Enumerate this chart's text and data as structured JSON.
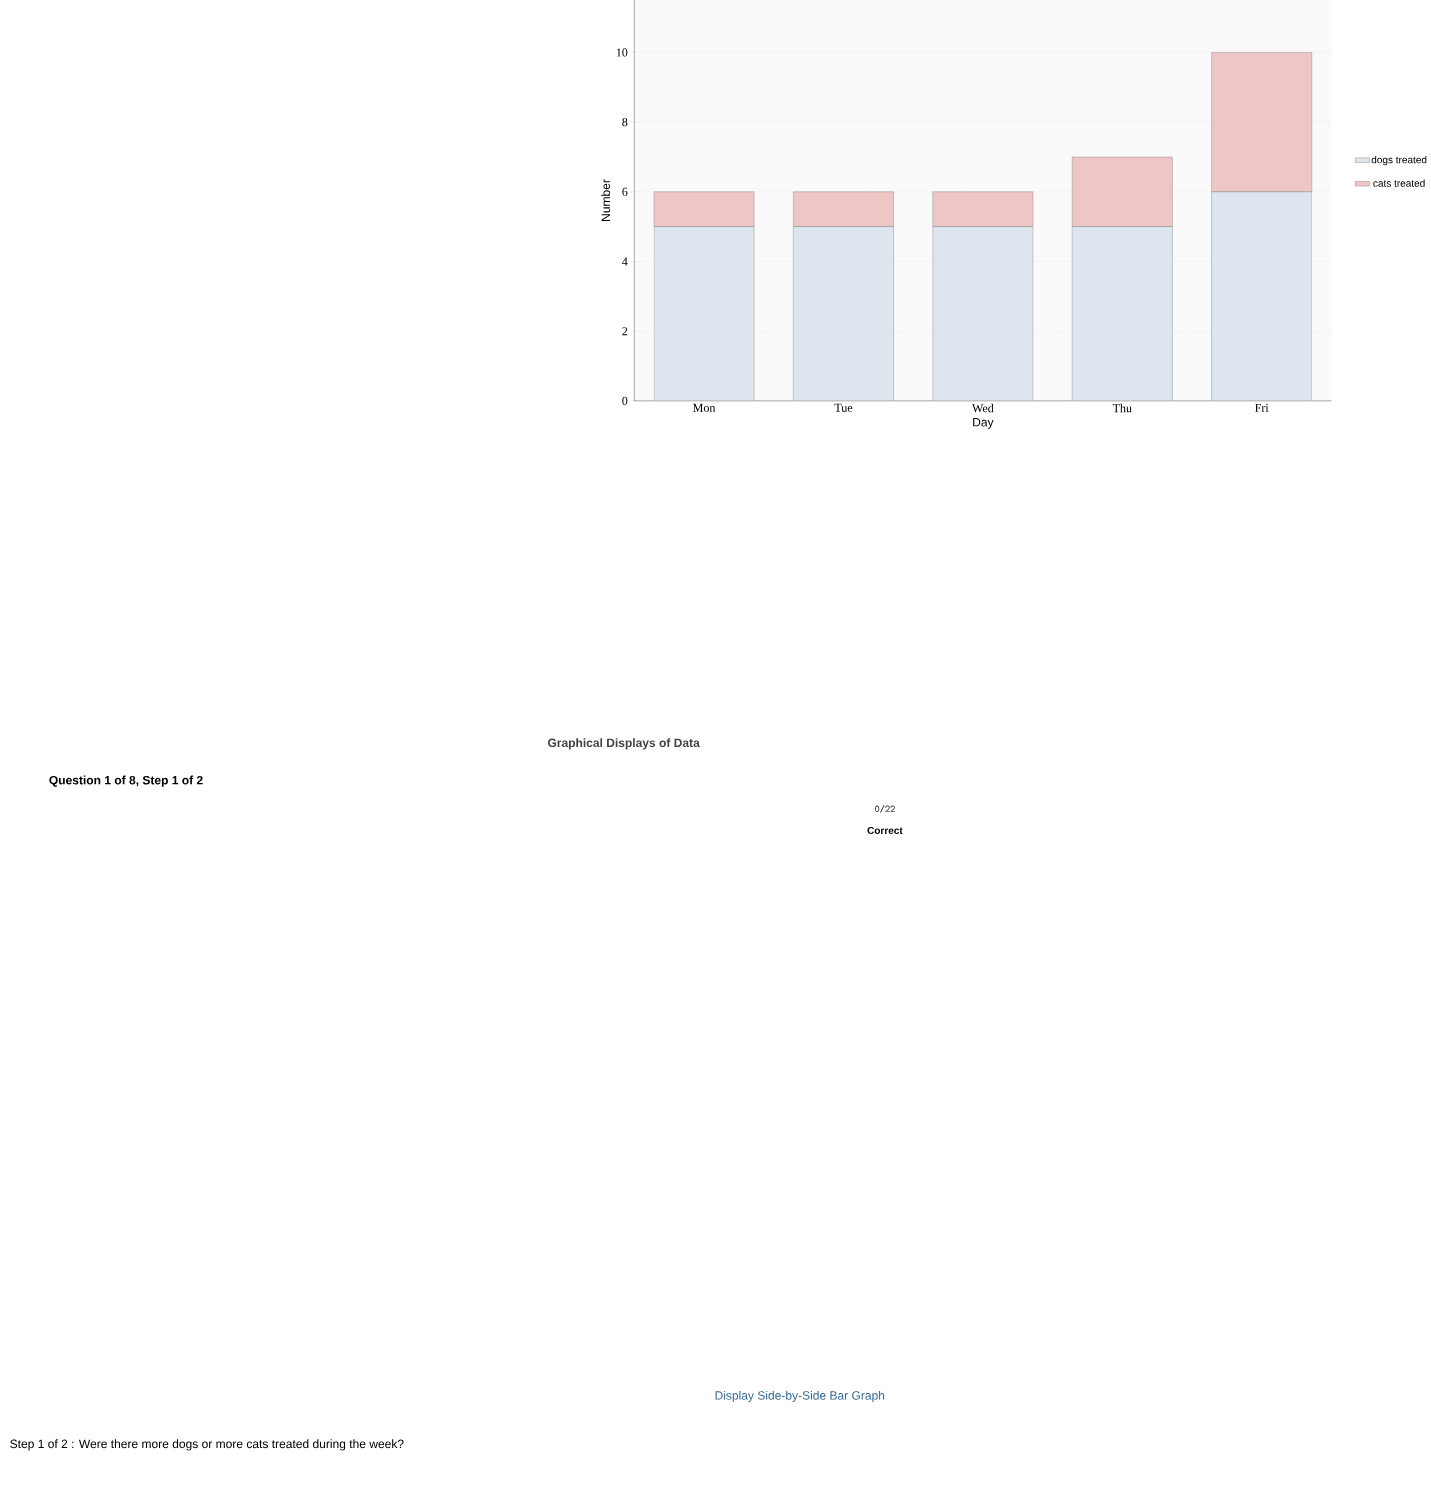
{
  "chart_data": {
    "type": "bar",
    "title": "Graphical Displays of Data",
    "xlabel": "Day",
    "ylabel": "Number",
    "categories": [
      "Mon",
      "Tue",
      "Wed",
      "Thu",
      "Fri"
    ],
    "series": [
      {
        "name": "dogs treated",
        "color": "#dde6ee",
        "values": [
          5,
          5,
          5,
          5,
          6
        ]
      },
      {
        "name": "cats treated",
        "color": "#efc6c6",
        "values": [
          1,
          1,
          1,
          2,
          4
        ]
      }
    ],
    "stacked": true,
    "ylim": [
      0,
      11.5
    ],
    "yticks": [
      0,
      2,
      4,
      6,
      8,
      10
    ],
    "grid": "y",
    "legend": "right",
    "annotations": [
      "Question 1 of 8,  Step 1 of 2",
      "0/22",
      "Correct",
      "Display Side-by-Side Bar Graph",
      "Step 1 of 2 :  Were there more dogs or more cats treated during the week?"
    ]
  }
}
